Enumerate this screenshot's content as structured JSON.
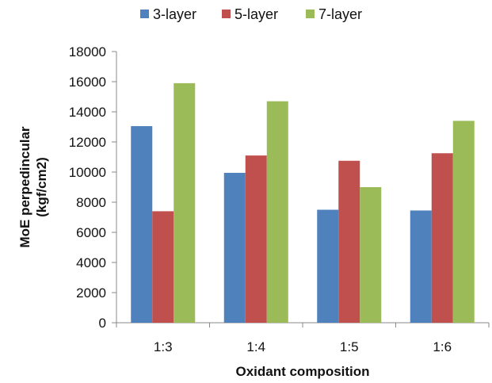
{
  "chart_data": {
    "type": "bar",
    "categories": [
      "1:3",
      "1:4",
      "1:5",
      "1:6"
    ],
    "series": [
      {
        "name": "3-layer",
        "color": "#4f81bd",
        "values": [
          13050,
          9950,
          7500,
          7450
        ]
      },
      {
        "name": "5-layer",
        "color": "#c0504d",
        "values": [
          7400,
          11100,
          10750,
          11250
        ]
      },
      {
        "name": "7-layer",
        "color": "#9bbb59",
        "values": [
          15900,
          14700,
          9000,
          13400
        ]
      }
    ],
    "xlabel": "Oxidant composition",
    "ylabel_lines": [
      "MoE perpedincular",
      "(kgf/cm2)"
    ],
    "ylim": [
      0,
      18000
    ],
    "yticks": [
      "0",
      "2000",
      "4000",
      "6000",
      "8000",
      "10000",
      "12000",
      "14000",
      "16000",
      "18000"
    ],
    "grid": false,
    "legend_position": "top-center"
  }
}
